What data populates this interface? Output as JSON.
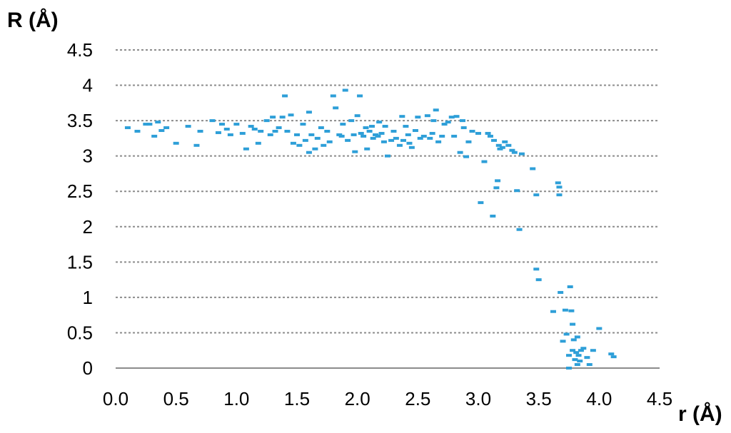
{
  "chart_data": {
    "type": "scatter",
    "title": "",
    "xlabel": "r (Å)",
    "ylabel": "R (Å)",
    "xlim": [
      0,
      4.5
    ],
    "ylim": [
      0,
      4.5
    ],
    "x_ticks": [
      "0.0",
      "0.5",
      "1.0",
      "1.5",
      "2.0",
      "2.5",
      "3.0",
      "3.5",
      "4.0",
      "4.5"
    ],
    "y_ticks": [
      "0",
      "0.5",
      "1",
      "1.5",
      "2",
      "2.5",
      "3",
      "3.5",
      "4",
      "4.5"
    ],
    "grid": "horizontal",
    "legend": "none",
    "marker_color": "#2e9fd8",
    "series": [
      {
        "points": [
          [
            0.1,
            3.4
          ],
          [
            0.18,
            3.35
          ],
          [
            0.25,
            3.45
          ],
          [
            0.28,
            3.45
          ],
          [
            0.32,
            3.28
          ],
          [
            0.35,
            3.48
          ],
          [
            0.38,
            3.36
          ],
          [
            0.42,
            3.4
          ],
          [
            0.5,
            3.18
          ],
          [
            0.6,
            3.42
          ],
          [
            0.67,
            3.15
          ],
          [
            0.7,
            3.35
          ],
          [
            0.8,
            3.5
          ],
          [
            0.85,
            3.33
          ],
          [
            0.88,
            3.45
          ],
          [
            0.92,
            3.38
          ],
          [
            0.95,
            3.3
          ],
          [
            1.0,
            3.45
          ],
          [
            1.05,
            3.32
          ],
          [
            1.08,
            3.1
          ],
          [
            1.12,
            3.42
          ],
          [
            1.15,
            3.38
          ],
          [
            1.18,
            3.18
          ],
          [
            1.2,
            3.35
          ],
          [
            1.25,
            3.5
          ],
          [
            1.28,
            3.3
          ],
          [
            1.3,
            3.55
          ],
          [
            1.32,
            3.35
          ],
          [
            1.35,
            3.4
          ],
          [
            1.38,
            3.55
          ],
          [
            1.4,
            3.85
          ],
          [
            1.42,
            3.35
          ],
          [
            1.45,
            3.58
          ],
          [
            1.47,
            3.18
          ],
          [
            1.5,
            3.3
          ],
          [
            1.52,
            3.15
          ],
          [
            1.55,
            3.45
          ],
          [
            1.57,
            3.22
          ],
          [
            1.6,
            3.05
          ],
          [
            1.6,
            3.62
          ],
          [
            1.62,
            3.3
          ],
          [
            1.65,
            3.1
          ],
          [
            1.67,
            3.25
          ],
          [
            1.7,
            3.4
          ],
          [
            1.72,
            3.15
          ],
          [
            1.75,
            3.35
          ],
          [
            1.77,
            3.2
          ],
          [
            1.8,
            3.85
          ],
          [
            1.82,
            3.68
          ],
          [
            1.85,
            3.3
          ],
          [
            1.87,
            3.28
          ],
          [
            1.88,
            3.45
          ],
          [
            1.9,
            3.93
          ],
          [
            1.92,
            3.22
          ],
          [
            1.95,
            3.5
          ],
          [
            1.97,
            3.3
          ],
          [
            1.98,
            3.06
          ],
          [
            2.0,
            3.57
          ],
          [
            2.02,
            3.85
          ],
          [
            2.03,
            3.32
          ],
          [
            2.05,
            3.28
          ],
          [
            2.07,
            3.4
          ],
          [
            2.08,
            3.1
          ],
          [
            2.1,
            3.35
          ],
          [
            2.12,
            3.42
          ],
          [
            2.13,
            3.25
          ],
          [
            2.15,
            3.3
          ],
          [
            2.17,
            3.28
          ],
          [
            2.18,
            3.48
          ],
          [
            2.2,
            3.32
          ],
          [
            2.22,
            3.2
          ],
          [
            2.23,
            3.42
          ],
          [
            2.25,
            3.0
          ],
          [
            2.28,
            3.22
          ],
          [
            2.3,
            3.35
          ],
          [
            2.32,
            3.25
          ],
          [
            2.35,
            3.15
          ],
          [
            2.37,
            3.56
          ],
          [
            2.38,
            3.22
          ],
          [
            2.4,
            3.42
          ],
          [
            2.42,
            3.3
          ],
          [
            2.43,
            3.18
          ],
          [
            2.45,
            3.12
          ],
          [
            2.48,
            3.36
          ],
          [
            2.5,
            3.55
          ],
          [
            2.52,
            3.25
          ],
          [
            2.55,
            3.28
          ],
          [
            2.58,
            3.57
          ],
          [
            2.6,
            3.25
          ],
          [
            2.62,
            3.32
          ],
          [
            2.63,
            3.5
          ],
          [
            2.65,
            3.65
          ],
          [
            2.67,
            3.2
          ],
          [
            2.7,
            3.28
          ],
          [
            2.72,
            3.45
          ],
          [
            2.75,
            3.48
          ],
          [
            2.78,
            3.55
          ],
          [
            2.8,
            3.28
          ],
          [
            2.82,
            3.56
          ],
          [
            2.85,
            3.05
          ],
          [
            2.87,
            3.5
          ],
          [
            2.88,
            3.4
          ],
          [
            2.9,
            2.99
          ],
          [
            2.92,
            3.2
          ],
          [
            2.95,
            3.35
          ],
          [
            3.0,
            3.32
          ],
          [
            3.02,
            2.34
          ],
          [
            3.05,
            2.92
          ],
          [
            3.08,
            3.32
          ],
          [
            3.1,
            3.28
          ],
          [
            3.12,
            2.15
          ],
          [
            3.13,
            3.22
          ],
          [
            3.15,
            2.55
          ],
          [
            3.16,
            2.65
          ],
          [
            3.17,
            3.15
          ],
          [
            3.18,
            3.1
          ],
          [
            3.2,
            3.12
          ],
          [
            3.22,
            3.2
          ],
          [
            3.25,
            3.15
          ],
          [
            3.28,
            3.08
          ],
          [
            3.3,
            3.05
          ],
          [
            3.32,
            2.51
          ],
          [
            3.34,
            1.96
          ],
          [
            3.36,
            3.03
          ],
          [
            3.45,
            2.82
          ],
          [
            3.48,
            2.45
          ],
          [
            3.48,
            1.4
          ],
          [
            3.5,
            1.25
          ],
          [
            3.62,
            0.8
          ],
          [
            3.66,
            2.62
          ],
          [
            3.67,
            2.56
          ],
          [
            3.67,
            2.45
          ],
          [
            3.68,
            1.07
          ],
          [
            3.7,
            0.38
          ],
          [
            3.72,
            0.82
          ],
          [
            3.73,
            0.48
          ],
          [
            3.75,
            0.18
          ],
          [
            3.75,
            0.0
          ],
          [
            3.76,
            1.15
          ],
          [
            3.77,
            0.81
          ],
          [
            3.78,
            0.62
          ],
          [
            3.78,
            0.25
          ],
          [
            3.79,
            0.4
          ],
          [
            3.8,
            0.12
          ],
          [
            3.81,
            0.22
          ],
          [
            3.82,
            0.44
          ],
          [
            3.82,
            0.05
          ],
          [
            3.83,
            0.18
          ],
          [
            3.84,
            0.1
          ],
          [
            3.85,
            0.25
          ],
          [
            3.87,
            0.28
          ],
          [
            3.9,
            0.15
          ],
          [
            3.92,
            0.05
          ],
          [
            3.95,
            0.25
          ],
          [
            4.0,
            0.56
          ],
          [
            4.1,
            0.2
          ],
          [
            4.12,
            0.16
          ]
        ]
      }
    ]
  }
}
